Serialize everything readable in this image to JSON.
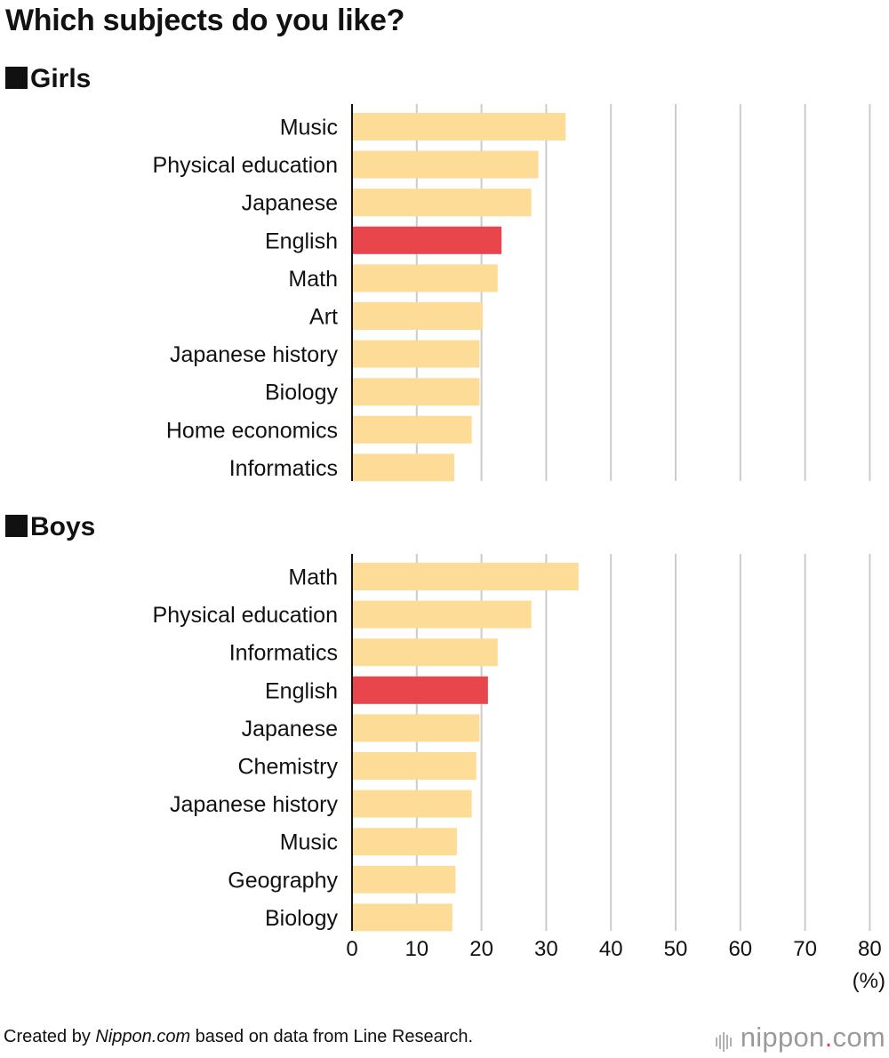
{
  "title": "Which subjects do you like?",
  "footer": {
    "prefix": "Created by ",
    "source": "Nippon.com",
    "suffix": " based on data from Line Research."
  },
  "logo": {
    "name": "nippon",
    "dot": ".",
    "tld": "com"
  },
  "colors": {
    "bar": "#fddc97",
    "highlight": "#e8464c",
    "grid": "#cccccc",
    "axis": "#111111"
  },
  "chart_data": [
    {
      "type": "bar",
      "orientation": "horizontal",
      "title": "Girls",
      "categories": [
        "Music",
        "Physical education",
        "Japanese",
        "English",
        "Math",
        "Art",
        "Japanese history",
        "Biology",
        "Home economics",
        "Informatics"
      ],
      "values": [
        33,
        28.8,
        27.7,
        23.1,
        22.5,
        20.2,
        19.7,
        19.7,
        18.5,
        15.8
      ],
      "highlight": "English",
      "xlim": [
        0,
        80
      ],
      "grid": true
    },
    {
      "type": "bar",
      "orientation": "horizontal",
      "title": "Boys",
      "categories": [
        "Math",
        "Physical education",
        "Informatics",
        "English",
        "Japanese",
        "Chemistry",
        "Japanese history",
        "Music",
        "Geography",
        "Biology"
      ],
      "values": [
        35,
        27.7,
        22.5,
        21,
        19.7,
        19.2,
        18.5,
        16.2,
        16,
        15.5
      ],
      "highlight": "English",
      "xlim": [
        0,
        80
      ],
      "xticks": [
        0,
        10,
        20,
        30,
        40,
        50,
        60,
        70,
        80
      ],
      "xunit": "(%)",
      "grid": true
    }
  ]
}
